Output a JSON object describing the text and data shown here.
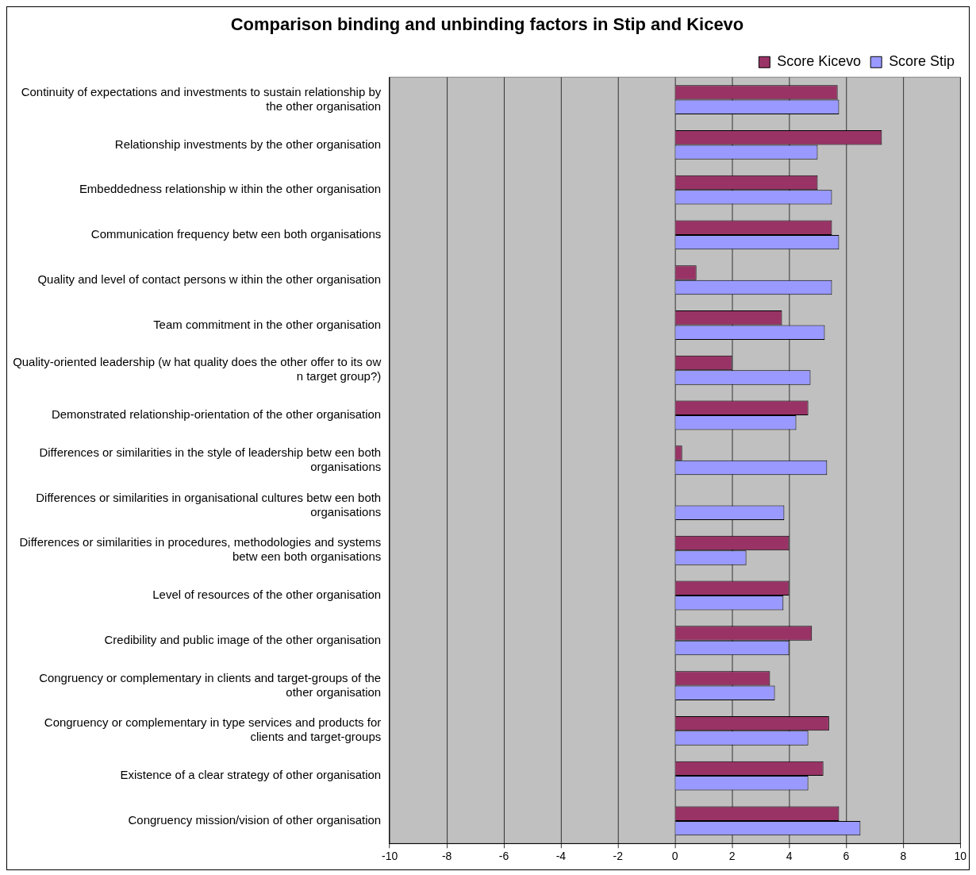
{
  "chart_data": {
    "type": "bar",
    "orientation": "horizontal",
    "title": "Comparison binding and unbinding factors in Stip and Kicevo",
    "categories": [
      "Continuity of expectations and investments to sustain relationship by the other organisation",
      "Relationship investments by the other organisation",
      "Embeddedness relationship w ithin the other organisation",
      "Communication frequency betw een both organisations",
      "Quality and level of contact persons w ithin the other organisation",
      "Team commitment in the other organisation",
      "Quality-oriented leadership (w hat quality does the other offer to its ow n target group?)",
      "Demonstrated relationship-orientation of the other organisation",
      "Differences or similarities in the style of leadership betw een both organisations",
      "Differences or similarities in organisational cultures betw een both organisations",
      "Differences or similarities in procedures, methodologies and systems betw een both organisations",
      "Level of resources of the other organisation",
      "Credibility and public image of the other organisation",
      "Congruency or complementary in clients and target-groups of the other organisation",
      "Congruency or complementary in type services and products for clients and target-groups",
      "Existence of a clear strategy of other organisation",
      "Congruency mission/vision of other organisation"
    ],
    "series": [
      {
        "name": "Score Kicevo",
        "color": "#993366",
        "values": [
          5.7,
          7.25,
          5.0,
          5.5,
          0.75,
          3.75,
          2.0,
          4.67,
          0.25,
          null,
          4.0,
          4.0,
          4.8,
          3.33,
          5.4,
          5.2,
          5.75
        ]
      },
      {
        "name": "Score Stip",
        "color": "#9999ff",
        "values": [
          5.75,
          5.0,
          5.5,
          5.75,
          5.5,
          5.25,
          4.75,
          4.25,
          5.33,
          3.83,
          2.5,
          3.8,
          4.0,
          3.5,
          4.67,
          4.67,
          6.5
        ]
      }
    ],
    "xlim": [
      -10,
      10
    ],
    "xticks": [
      -10,
      -8,
      -6,
      -4,
      -2,
      0,
      2,
      4,
      6,
      8,
      10
    ],
    "grid": "x",
    "legend": "top right"
  }
}
